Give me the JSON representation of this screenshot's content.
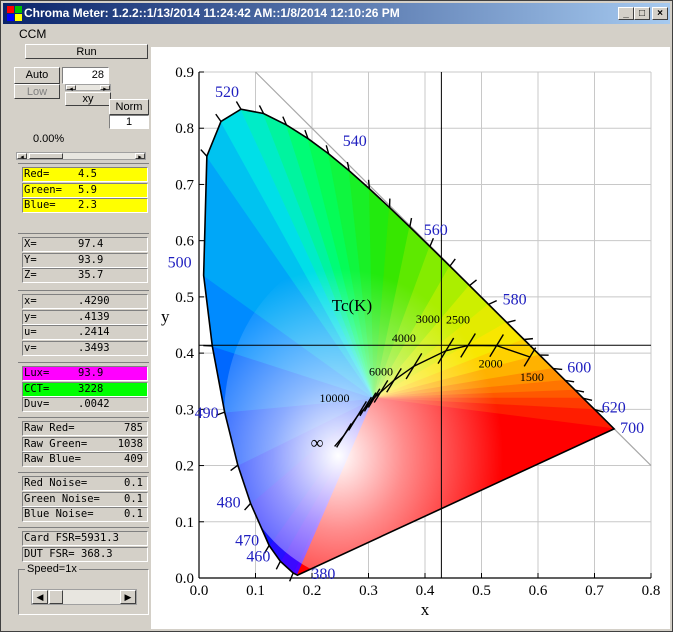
{
  "window": {
    "title": "Chroma Meter: 1.2.2::1/13/2014 11:24:42 AM::1/8/2014 12:10:26 PM",
    "minimize": "_",
    "maximize": "□",
    "close": "×"
  },
  "menu": {
    "item": "CCM"
  },
  "controls": {
    "run": "Run",
    "auto": "Auto",
    "auto_value": "28",
    "low": "Low",
    "xy": "xy",
    "norm": "Norm",
    "norm_value": "1",
    "percent": "0.00%",
    "speed_label": "Speed=1x"
  },
  "readouts": {
    "rgb": [
      {
        "label": "Red=",
        "value": "4.5",
        "color": "#ffff00"
      },
      {
        "label": "Green=",
        "value": "5.9",
        "color": "#ffff00"
      },
      {
        "label": "Blue=",
        "value": "2.3",
        "color": "#ffff00"
      }
    ],
    "xyz": [
      {
        "label": "X=",
        "value": "97.4"
      },
      {
        "label": "Y=",
        "value": "93.9"
      },
      {
        "label": "Z=",
        "value": "35.7"
      }
    ],
    "chroma": [
      {
        "label": "x=",
        "value": ".4290"
      },
      {
        "label": "y=",
        "value": ".4139"
      },
      {
        "label": "u=",
        "value": ".2414"
      },
      {
        "label": "v=",
        "value": ".3493"
      }
    ],
    "light": [
      {
        "label": "Lux=",
        "value": "93.9",
        "color": "#ff00ff"
      },
      {
        "label": "CCT=",
        "value": "3228",
        "color": "#00ff00"
      },
      {
        "label": "Duv=",
        "value": ".0042",
        "color": "#d4d0c8"
      }
    ],
    "raw": [
      {
        "label": "Raw Red=",
        "value": "785"
      },
      {
        "label": "Raw Green=",
        "value": "1038"
      },
      {
        "label": "Raw Blue=",
        "value": "409"
      }
    ],
    "noise": [
      {
        "label": "Red Noise=",
        "value": "0.1"
      },
      {
        "label": "Green Noise=",
        "value": "0.1"
      },
      {
        "label": "Blue Noise=",
        "value": "0.1"
      }
    ],
    "fsr": [
      {
        "label": "Card FSR=",
        "value": "5931.3"
      },
      {
        "label": "DUT FSR=",
        "value": "368.3"
      }
    ]
  },
  "chart_data": {
    "type": "scatter",
    "xlabel": "x",
    "ylabel": "y",
    "xlim": [
      0.0,
      0.8
    ],
    "ylim": [
      0.0,
      0.9
    ],
    "x_ticks": [
      "0.0",
      "0.1",
      "0.2",
      "0.3",
      "0.4",
      "0.5",
      "0.6",
      "0.7",
      "0.8"
    ],
    "y_ticks": [
      "0.0",
      "0.1",
      "0.2",
      "0.3",
      "0.4",
      "0.5",
      "0.6",
      "0.7",
      "0.8",
      "0.9"
    ],
    "grid": true,
    "locus": [
      [
        0.1741,
        0.005
      ],
      [
        0.1666,
        0.0089
      ],
      [
        0.144,
        0.0297
      ],
      [
        0.1241,
        0.0578
      ],
      [
        0.0913,
        0.1327
      ],
      [
        0.0687,
        0.2007
      ],
      [
        0.0454,
        0.295
      ],
      [
        0.0235,
        0.4127
      ],
      [
        0.0082,
        0.5384
      ],
      [
        0.0139,
        0.7502
      ],
      [
        0.0389,
        0.812
      ],
      [
        0.0743,
        0.8338
      ],
      [
        0.1142,
        0.8262
      ],
      [
        0.1547,
        0.8059
      ],
      [
        0.1929,
        0.7816
      ],
      [
        0.2296,
        0.7543
      ],
      [
        0.2658,
        0.7243
      ],
      [
        0.3016,
        0.6923
      ],
      [
        0.3373,
        0.6589
      ],
      [
        0.3731,
        0.6245
      ],
      [
        0.4087,
        0.5896
      ],
      [
        0.4441,
        0.5547
      ],
      [
        0.4788,
        0.5202
      ],
      [
        0.5125,
        0.4866
      ],
      [
        0.5448,
        0.4544
      ],
      [
        0.5752,
        0.4242
      ],
      [
        0.6029,
        0.3965
      ],
      [
        0.627,
        0.3725
      ],
      [
        0.6482,
        0.3514
      ],
      [
        0.6658,
        0.334
      ],
      [
        0.6801,
        0.3197
      ],
      [
        0.7006,
        0.2993
      ],
      [
        0.7347,
        0.2653
      ]
    ],
    "wavelength_labels": [
      {
        "nm": "380",
        "x": 0.1741,
        "y": 0.005
      },
      {
        "nm": "460",
        "x": 0.144,
        "y": 0.0297
      },
      {
        "nm": "470",
        "x": 0.1241,
        "y": 0.0578
      },
      {
        "nm": "480",
        "x": 0.0913,
        "y": 0.1327
      },
      {
        "nm": "490",
        "x": 0.0454,
        "y": 0.295
      },
      {
        "nm": "500",
        "x": 0.0082,
        "y": 0.5384
      },
      {
        "nm": "520",
        "x": 0.0743,
        "y": 0.8338
      },
      {
        "nm": "540",
        "x": 0.2296,
        "y": 0.7543
      },
      {
        "nm": "560",
        "x": 0.3731,
        "y": 0.6245
      },
      {
        "nm": "580",
        "x": 0.5125,
        "y": 0.4866
      },
      {
        "nm": "600",
        "x": 0.627,
        "y": 0.3725
      },
      {
        "nm": "620",
        "x": 0.6915,
        "y": 0.3083
      },
      {
        "nm": "700",
        "x": 0.7347,
        "y": 0.2653
      }
    ],
    "planckian_locus": [
      [
        0.24,
        0.234
      ],
      [
        0.2565,
        0.2536
      ],
      [
        0.2806,
        0.2883
      ],
      [
        0.3135,
        0.3236
      ],
      [
        0.3451,
        0.3516
      ],
      [
        0.3804,
        0.3767
      ],
      [
        0.4369,
        0.4041
      ],
      [
        0.4762,
        0.4137
      ],
      [
        0.5267,
        0.4133
      ],
      [
        0.5857,
        0.3931
      ]
    ],
    "cct_labels": [
      {
        "t": "10000",
        "x": 0.2806,
        "y": 0.2883
      },
      {
        "t": "6000",
        "x": 0.3221,
        "y": 0.3318
      },
      {
        "t": "4000",
        "x": 0.3804,
        "y": 0.3767
      },
      {
        "t": "3000",
        "x": 0.4369,
        "y": 0.4041
      },
      {
        "t": "2500",
        "x": 0.4762,
        "y": 0.4137
      },
      {
        "t": "2000",
        "x": 0.5267,
        "y": 0.4133
      },
      {
        "t": "1500",
        "x": 0.5857,
        "y": 0.3931
      },
      {
        "t": "∞",
        "x": 0.24,
        "y": 0.234
      }
    ],
    "cct_title": "Tc(K)",
    "measurement": {
      "x": 0.429,
      "y": 0.4139
    }
  }
}
